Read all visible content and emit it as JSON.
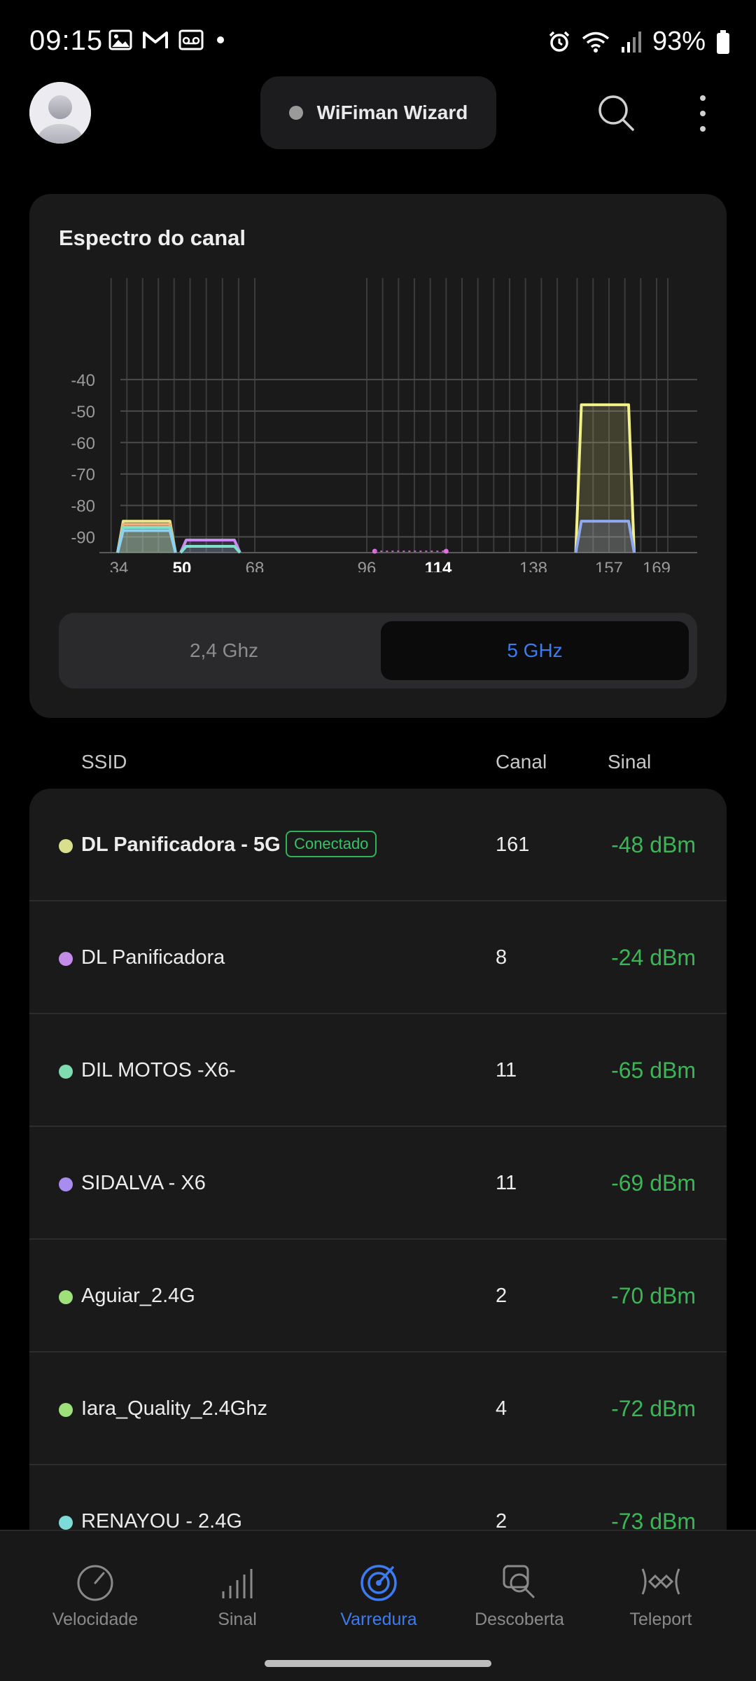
{
  "status_bar": {
    "time": "09:15",
    "battery": "93%"
  },
  "header": {
    "wizard_label": "WiFiman Wizard"
  },
  "spectrum": {
    "title": "Espectro do canal",
    "tabs": [
      {
        "label": "2,4 Ghz",
        "selected": false
      },
      {
        "label": "5 GHz",
        "selected": true
      }
    ]
  },
  "chart_data": {
    "type": "area",
    "title": "Espectro do canal",
    "xlabel": "",
    "ylabel": "",
    "x_ticks": [
      {
        "label": "34",
        "bold": false
      },
      {
        "label": "50",
        "bold": true
      },
      {
        "label": "68",
        "bold": false
      },
      {
        "label": "96",
        "bold": false
      },
      {
        "label": "114",
        "bold": true
      },
      {
        "label": "138",
        "bold": false
      },
      {
        "label": "157",
        "bold": false
      },
      {
        "label": "169",
        "bold": false
      }
    ],
    "y_ticks": [
      "-40",
      "-50",
      "-60",
      "-70",
      "-80",
      "-90"
    ],
    "ylim": [
      -95,
      -30
    ],
    "grid": true,
    "series": [
      {
        "channel_from": 34,
        "channel_to": 48,
        "value": -85,
        "color": "#e7e48a"
      },
      {
        "channel_from": 34,
        "channel_to": 48,
        "value": -86,
        "color": "#f2b27a"
      },
      {
        "channel_from": 34,
        "channel_to": 48,
        "value": -87,
        "color": "#7fe0c8"
      },
      {
        "channel_from": 34,
        "channel_to": 48,
        "value": -88,
        "color": "#8fd0f0"
      },
      {
        "channel_from": 50,
        "channel_to": 64,
        "value": -91,
        "color": "#c88cf0"
      },
      {
        "channel_from": 50,
        "channel_to": 64,
        "value": -93,
        "color": "#7fe0c8"
      },
      {
        "channel_from": 149,
        "channel_to": 163,
        "value": -48,
        "color": "#f2f08a"
      },
      {
        "channel_from": 149,
        "channel_to": 163,
        "value": -85,
        "color": "#8fa8f0"
      }
    ],
    "points": [
      {
        "channel": 98,
        "value": -95,
        "color": "#e070e0"
      },
      {
        "channel": 116,
        "value": -95,
        "color": "#e070e0"
      }
    ]
  },
  "table": {
    "col_ssid": "SSID",
    "col_channel": "Canal",
    "col_signal": "Sinal",
    "rows": [
      {
        "ssid": "DL Panificadora - 5G",
        "badge": "Conectado",
        "channel": "161",
        "signal": "-48 dBm",
        "color": "#d9df8c",
        "bold": true
      },
      {
        "ssid": "DL Panificadora",
        "channel": "8",
        "signal": "-24 dBm",
        "color": "#c58be8"
      },
      {
        "ssid": "DIL MOTOS -X6-",
        "channel": "11",
        "signal": "-65 dBm",
        "color": "#7edcb0"
      },
      {
        "ssid": "SIDALVA - X6",
        "channel": "11",
        "signal": "-69 dBm",
        "color": "#a98cf0"
      },
      {
        "ssid": "Aguiar_2.4G",
        "channel": "2",
        "signal": "-70 dBm",
        "color": "#9ee07a"
      },
      {
        "ssid": "Iara_Quality_2.4Ghz",
        "channel": "4",
        "signal": "-72 dBm",
        "color": "#9ee07a"
      },
      {
        "ssid": "RENAYOU - 2.4G",
        "channel": "2",
        "signal": "-73 dBm",
        "color": "#7edcd8"
      }
    ]
  },
  "bottom_nav": [
    {
      "label": "Velocidade",
      "icon": "speedometer-icon",
      "active": false
    },
    {
      "label": "Sinal",
      "icon": "signal-bars-icon",
      "active": false
    },
    {
      "label": "Varredura",
      "icon": "radar-icon",
      "active": true
    },
    {
      "label": "Descoberta",
      "icon": "discovery-icon",
      "active": false
    },
    {
      "label": "Teleport",
      "icon": "teleport-icon",
      "active": false
    }
  ]
}
